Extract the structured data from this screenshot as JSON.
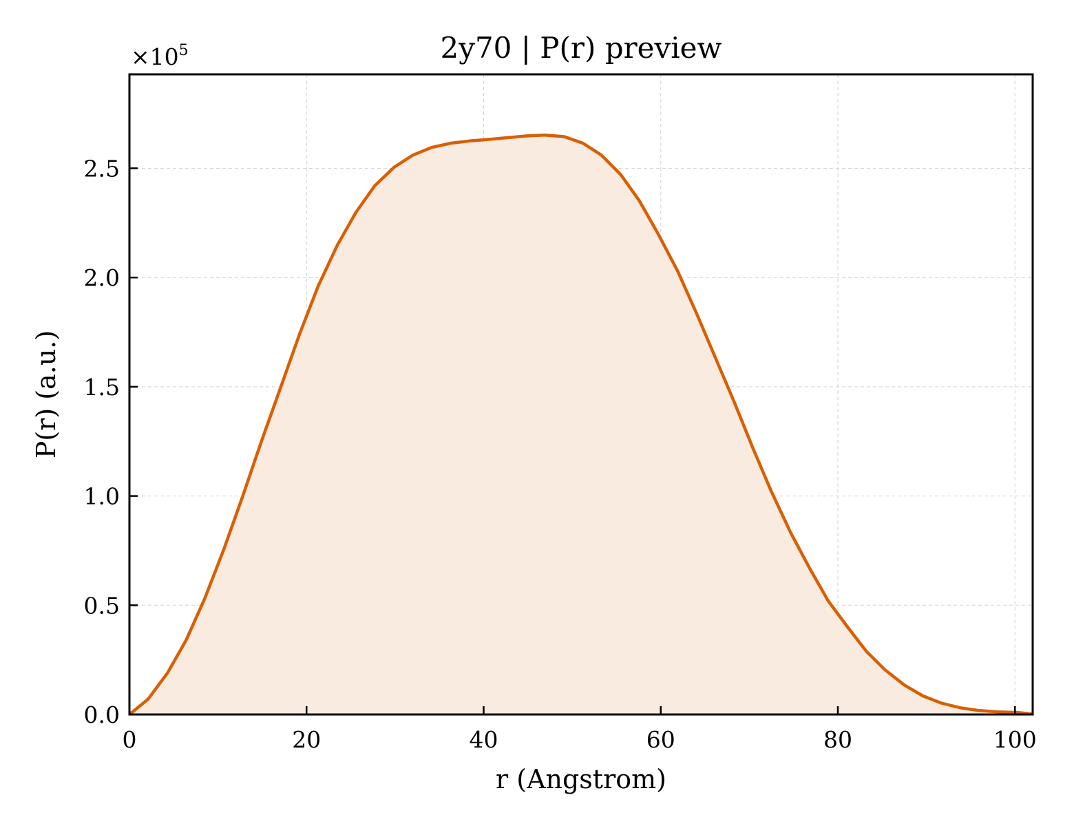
{
  "chart_data": {
    "type": "area",
    "title": "2y70 | P(r) preview",
    "xlabel": "r (Angstrom)",
    "ylabel": "P(r) (a.u.)",
    "y_multiplier": {
      "base": "×10",
      "exponent": "5"
    },
    "xlim": [
      0,
      102
    ],
    "ylim": [
      0,
      2.93
    ],
    "y_scale_factor": 100000,
    "x_ticks": [
      0,
      20,
      40,
      60,
      80,
      100
    ],
    "x_tick_labels": [
      "0",
      "20",
      "40",
      "60",
      "80",
      "100"
    ],
    "y_ticks": [
      0.0,
      0.5,
      1.0,
      1.5,
      2.0,
      2.5
    ],
    "y_tick_labels": [
      "0.0",
      "0.5",
      "1.0",
      "1.5",
      "2.0",
      "2.5"
    ],
    "grid": true,
    "colors": {
      "line": "#d95f02",
      "fill": "#f9ebe0",
      "grid": "#d3d3d3"
    },
    "series": [
      {
        "x": [
          0,
          2.1,
          4.3,
          6.4,
          8.5,
          10.7,
          12.8,
          14.9,
          17.1,
          19.2,
          21.3,
          23.5,
          25.6,
          27.7,
          29.9,
          32.0,
          34.1,
          36.3,
          38.4,
          40.5,
          42.7,
          44.8,
          46.9,
          49.1,
          51.2,
          53.3,
          55.5,
          57.6,
          59.7,
          61.9,
          64.0,
          66.1,
          68.3,
          70.4,
          72.5,
          74.7,
          76.8,
          78.9,
          81.1,
          83.2,
          85.3,
          87.5,
          89.6,
          91.7,
          93.9,
          96.0,
          98.1,
          100.3,
          102.0
        ],
        "y": [
          0.0,
          0.07,
          0.19,
          0.34,
          0.53,
          0.76,
          1.0,
          1.25,
          1.5,
          1.74,
          1.96,
          2.15,
          2.3,
          2.42,
          2.505,
          2.56,
          2.595,
          2.615,
          2.625,
          2.632,
          2.64,
          2.648,
          2.652,
          2.645,
          2.615,
          2.56,
          2.47,
          2.35,
          2.2,
          2.03,
          1.84,
          1.64,
          1.43,
          1.22,
          1.02,
          0.83,
          0.67,
          0.52,
          0.4,
          0.29,
          0.205,
          0.135,
          0.085,
          0.052,
          0.03,
          0.018,
          0.012,
          0.009,
          0.002
        ]
      }
    ]
  }
}
